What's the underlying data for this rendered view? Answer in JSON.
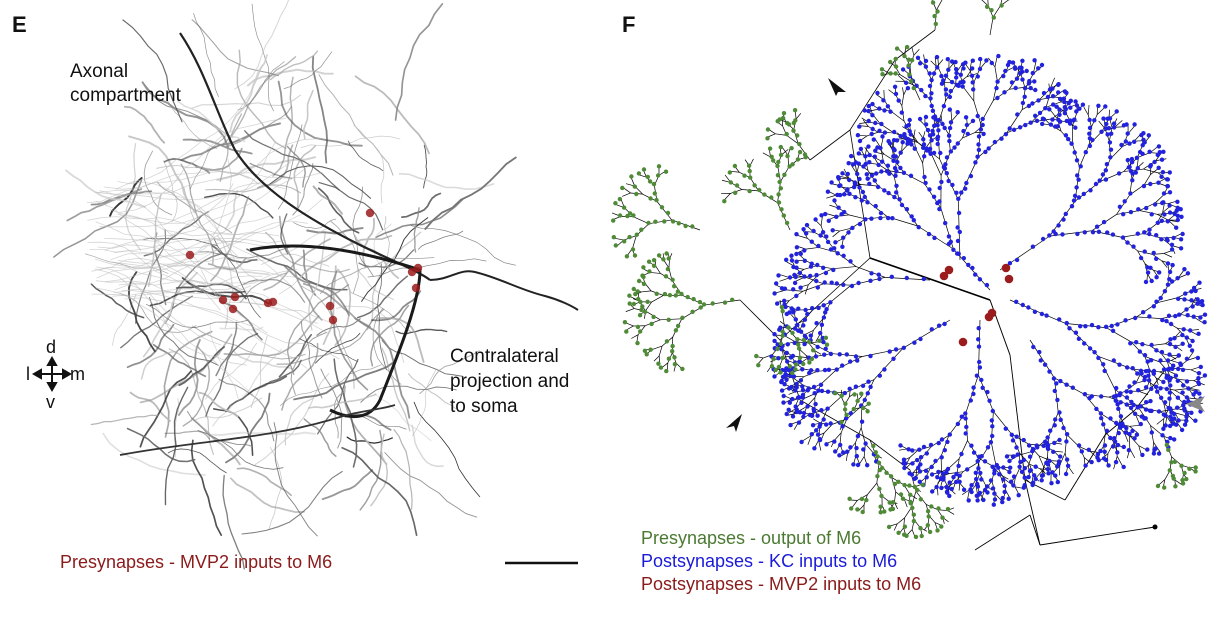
{
  "panel_e": {
    "letter": "E",
    "axonal_label": [
      "Axonal",
      "compartment"
    ],
    "contralateral_label": [
      "Contralateral",
      "projection and",
      "to soma"
    ],
    "axes": {
      "d": "d",
      "v": "v",
      "l": "l",
      "m": "m"
    },
    "legend": "Presynapses - MVP2 inputs to M6",
    "colors": {
      "neuron": "#1a1a1a",
      "synapse": "#8b1a1a"
    }
  },
  "panel_f": {
    "letter": "F",
    "legend": [
      {
        "text": "Presynapses - output of M6",
        "color": "#4a7a32"
      },
      {
        "text": "Postsynapses - KC inputs to M6",
        "color": "#1a1ad8"
      },
      {
        "text": "Postsynapses - MVP2 inputs to M6",
        "color": "#8b1a1a"
      }
    ],
    "colors": {
      "skeleton": "#000000",
      "pre": "#4f8a36",
      "post": "#2222dd",
      "mvp2": "#9b1c1c",
      "arrow_black": "#111111",
      "arrow_gray": "#888888"
    }
  }
}
